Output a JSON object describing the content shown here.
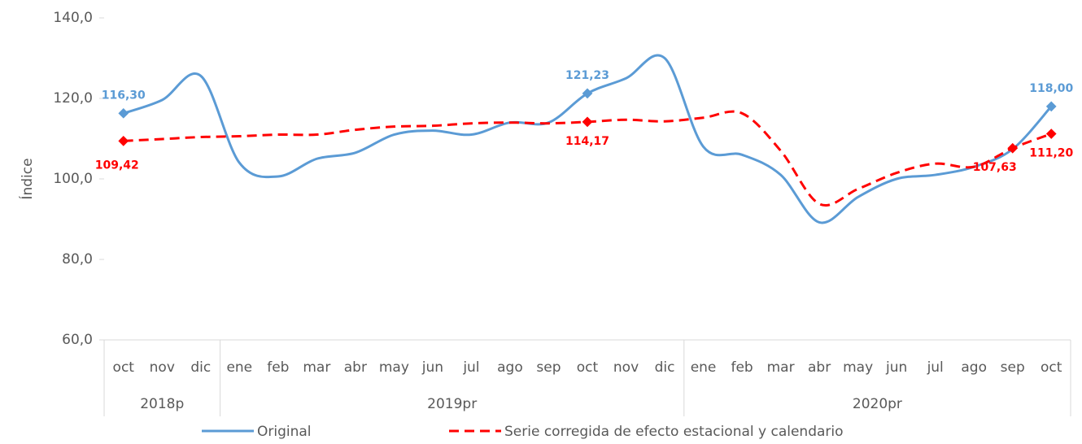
{
  "chart_data": {
    "type": "line",
    "y_label": "Índice",
    "categories": [
      "oct",
      "nov",
      "dic",
      "ene",
      "feb",
      "mar",
      "abr",
      "may",
      "jun",
      "jul",
      "ago",
      "sep",
      "oct",
      "nov",
      "dic",
      "ene",
      "feb",
      "mar",
      "abr",
      "may",
      "jun",
      "jul",
      "ago",
      "sep",
      "oct"
    ],
    "groups": [
      {
        "label": "2018p",
        "count": 3
      },
      {
        "label": "2019pr",
        "count": 12
      },
      {
        "label": "2020pr",
        "count": 10
      }
    ],
    "ylim": [
      60,
      140
    ],
    "yticks": [
      {
        "value": 60,
        "label": "60,0"
      },
      {
        "value": 80,
        "label": "80,0"
      },
      {
        "value": 100,
        "label": "100,0"
      },
      {
        "value": 120,
        "label": "120,0"
      },
      {
        "value": 140,
        "label": "140,0"
      }
    ],
    "series": [
      {
        "name": "Original",
        "color": "#5b9bd5",
        "dash": false,
        "values": [
          116.3,
          119.6,
          125.6,
          104,
          100.6,
          105,
          106.5,
          111,
          112,
          111,
          114,
          114,
          121.23,
          125,
          130,
          108,
          106,
          101,
          89.2,
          95.5,
          100,
          101,
          103,
          107.4,
          118.0
        ],
        "value_labels": [
          "116,30",
          null,
          null,
          null,
          null,
          null,
          null,
          null,
          null,
          null,
          null,
          null,
          "121,23",
          null,
          null,
          null,
          null,
          null,
          null,
          null,
          null,
          null,
          null,
          null,
          "118,00"
        ]
      },
      {
        "name": "Serie corregida de efecto estacional y calendario",
        "color": "#ff0000",
        "dash": true,
        "values": [
          109.42,
          109.9,
          110.4,
          110.6,
          111,
          111,
          112.2,
          113,
          113.2,
          113.8,
          114,
          113.8,
          114.17,
          114.7,
          114.3,
          115.2,
          116.3,
          107,
          93.8,
          97.5,
          101.5,
          103.8,
          103,
          107.63,
          111.2
        ],
        "value_labels": [
          "109,42",
          null,
          null,
          null,
          null,
          null,
          null,
          null,
          null,
          null,
          null,
          null,
          "114,17",
          null,
          null,
          null,
          null,
          null,
          null,
          null,
          null,
          null,
          null,
          "107,63",
          "111,20"
        ]
      }
    ]
  }
}
